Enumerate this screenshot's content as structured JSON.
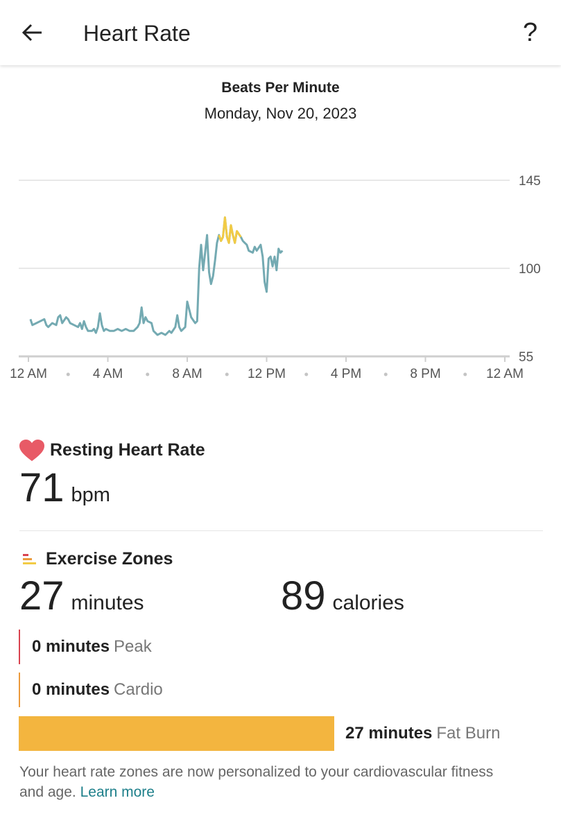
{
  "header": {
    "title": "Heart Rate",
    "help": "?"
  },
  "chart_data": {
    "type": "line",
    "title": "Beats Per Minute",
    "subtitle": "Monday, Nov 20, 2023",
    "x": [
      0.1,
      0.2,
      0.4,
      0.6,
      0.8,
      0.9,
      1.0,
      1.2,
      1.4,
      1.5,
      1.6,
      1.7,
      1.9,
      2.0,
      2.1,
      2.3,
      2.5,
      2.6,
      2.7,
      2.8,
      2.9,
      3.0,
      3.2,
      3.3,
      3.4,
      3.5,
      3.6,
      3.7,
      3.8,
      3.9,
      4.1,
      4.3,
      4.5,
      4.7,
      4.9,
      5.1,
      5.3,
      5.5,
      5.6,
      5.7,
      5.8,
      5.9,
      6.0,
      6.2,
      6.3,
      6.5,
      6.7,
      6.9,
      7.1,
      7.2,
      7.4,
      7.5,
      7.6,
      7.7,
      7.9,
      8.0,
      8.2,
      8.4,
      8.5,
      8.6,
      8.7,
      8.8,
      8.9,
      9.0,
      9.1,
      9.2,
      9.3,
      9.4,
      9.5,
      9.6,
      9.7,
      9.8,
      9.9,
      10.0,
      10.1,
      10.2,
      10.3,
      10.4,
      10.5,
      10.7,
      10.8,
      10.9,
      11.0,
      11.1,
      11.3,
      11.4,
      11.5,
      11.7,
      11.8,
      11.9,
      12.0,
      12.1,
      12.2,
      12.3,
      12.4,
      12.5,
      12.6,
      12.7,
      12.8
    ],
    "series": [
      {
        "color": "#74aab2",
        "values": [
          74,
          71,
          72,
          73,
          74,
          71,
          70,
          72,
          71,
          75,
          76,
          72,
          75,
          74,
          72,
          71,
          70,
          72,
          69,
          73,
          70,
          68,
          68,
          69,
          67,
          70,
          77,
          71,
          68,
          69,
          68,
          68,
          69,
          68,
          69,
          68,
          68,
          70,
          72,
          80,
          72,
          75,
          73,
          72,
          68,
          66,
          67,
          66,
          68,
          67,
          70,
          76,
          70,
          68,
          70,
          83,
          75,
          72,
          73,
          100,
          112,
          99,
          108,
          117,
          98,
          92,
          96,
          104,
          113,
          117,
          114,
          116,
          126,
          116,
          113,
          122,
          117,
          113,
          119,
          116,
          114,
          113,
          112,
          109,
          108,
          111,
          109,
          112,
          106,
          93,
          88,
          105,
          106,
          101,
          106,
          99,
          110,
          108,
          109
        ]
      },
      {
        "color": "#f2cb45",
        "x": [
          9.6,
          9.7,
          9.8,
          9.9,
          10.0,
          10.1,
          10.2,
          10.3,
          10.4,
          10.5,
          10.7
        ],
        "values": [
          117,
          114,
          116,
          126,
          116,
          113,
          122,
          117,
          113,
          119,
          116
        ]
      }
    ],
    "xlim": [
      0,
      24
    ],
    "xticks": [
      {
        "value": 0,
        "label": "12 AM"
      },
      {
        "value": 4,
        "label": "4 AM"
      },
      {
        "value": 8,
        "label": "8 AM"
      },
      {
        "value": 12,
        "label": "12 PM"
      },
      {
        "value": 16,
        "label": "4 PM"
      },
      {
        "value": 20,
        "label": "8 PM"
      },
      {
        "value": 24,
        "label": "12 AM"
      }
    ],
    "ylim": [
      55,
      145
    ],
    "yticks": [
      55,
      100,
      145
    ],
    "grid": true
  },
  "resting": {
    "title": "Resting Heart Rate",
    "value": 71,
    "unit": "bpm"
  },
  "exercise": {
    "title": "Exercise Zones",
    "minutes": 27,
    "minutes_unit": "minutes",
    "calories": 89,
    "calories_unit": "calories",
    "zones": [
      {
        "minutes": 0,
        "unit": "minutes",
        "name": "Peak",
        "color": "#d9434f"
      },
      {
        "minutes": 0,
        "unit": "minutes",
        "name": "Cardio",
        "color": "#eb9a3c"
      },
      {
        "minutes": 27,
        "unit": "minutes",
        "name": "Fat Burn",
        "color": "#f3b53f"
      }
    ]
  },
  "footer": {
    "text": "Your heart rate zones are now personalized to your cardiovascular fitness and age.",
    "link": "Learn more"
  }
}
